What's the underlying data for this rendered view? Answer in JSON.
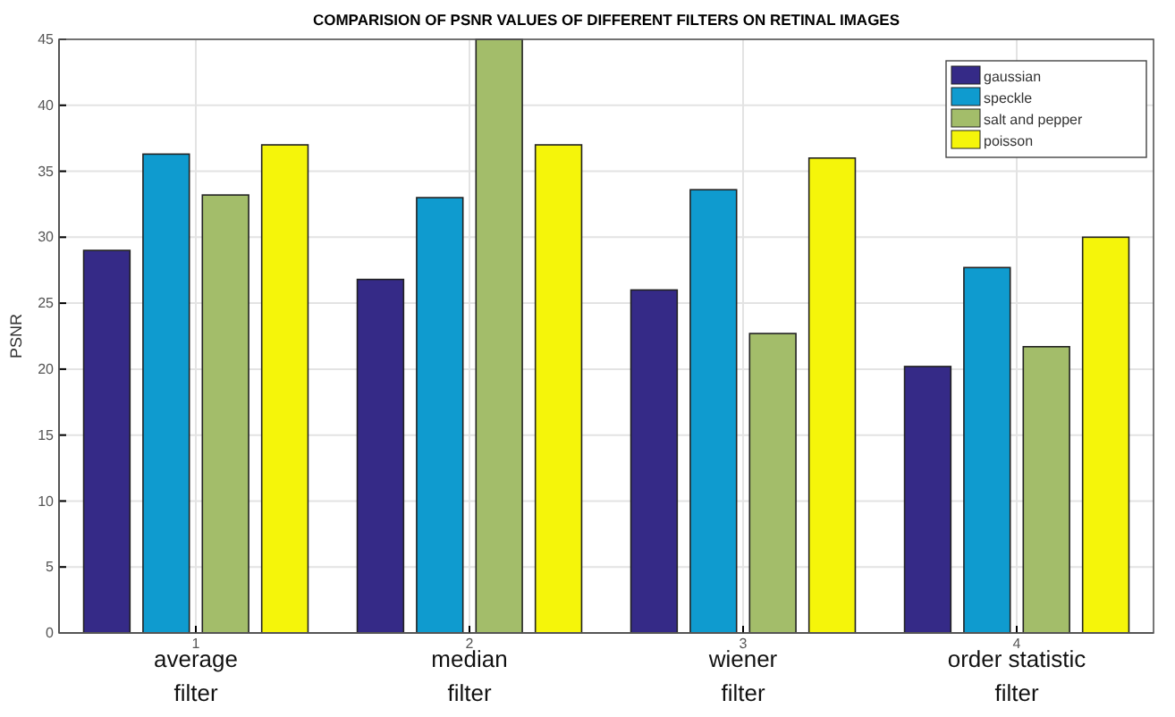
{
  "chart_data": {
    "type": "bar",
    "title": "COMPARISION OF PSNR VALUES OF DIFFERENT FILTERS ON RETINAL IMAGES",
    "ylabel": "PSNR",
    "categories": [
      "1",
      "2",
      "3",
      "4"
    ],
    "series": [
      {
        "name": "gaussian",
        "color": "#352a87",
        "values": [
          29,
          26.8,
          26,
          20.2
        ]
      },
      {
        "name": "speckle",
        "color": "#0f9bcf",
        "values": [
          36.3,
          33,
          33.6,
          27.7
        ]
      },
      {
        "name": "salt and pepper",
        "color": "#a3bd6a",
        "values": [
          33.2,
          45,
          22.7,
          21.7
        ]
      },
      {
        "name": "poisson",
        "color": "#f5f50a",
        "values": [
          37,
          37,
          36,
          30
        ]
      }
    ],
    "ylim": [
      0,
      45
    ],
    "yticks": [
      0,
      5,
      10,
      15,
      20,
      25,
      30,
      35,
      40,
      45
    ],
    "grid": true,
    "legend": "top right",
    "annotations": [
      "average filter",
      "median filter",
      "wiener filter",
      "order statistic filter"
    ]
  }
}
